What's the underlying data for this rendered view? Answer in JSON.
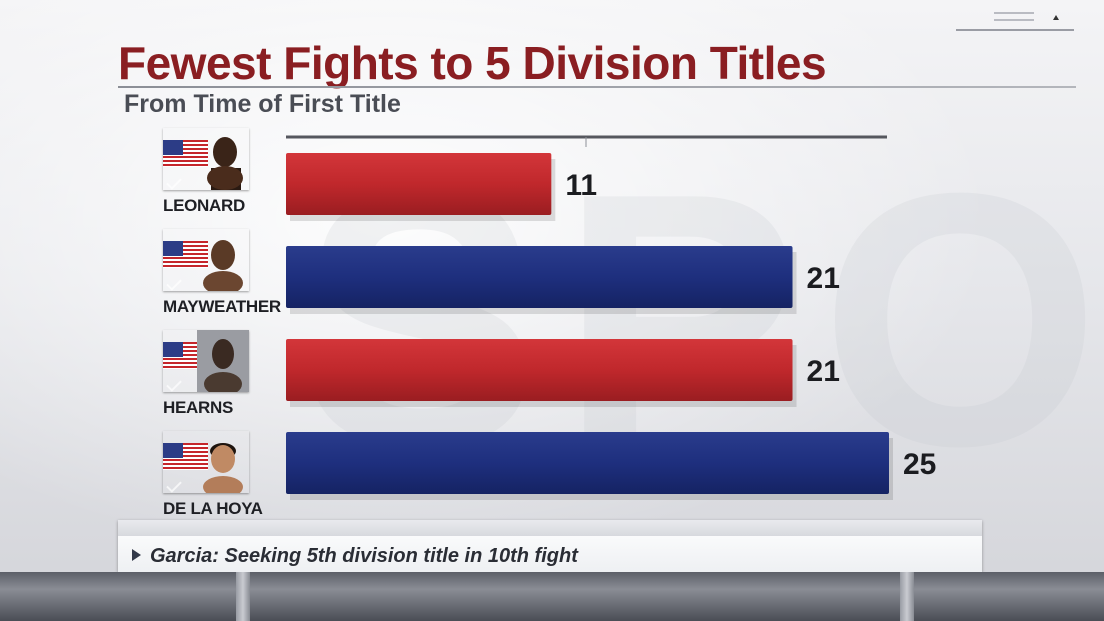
{
  "header": {
    "title": "Fewest Fights to 5 Division Titles",
    "subtitle": "From Time of First Title"
  },
  "chart_data": {
    "type": "bar",
    "orientation": "horizontal",
    "title": "Fewest Fights to 5 Division Titles",
    "subtitle": "From Time of First Title",
    "categories": [
      "LEONARD",
      "MAYWEATHER",
      "HEARNS",
      "DE LA HOYA"
    ],
    "values": [
      11,
      21,
      21,
      25
    ],
    "value_labels": [
      "11",
      "21",
      "21",
      "25"
    ],
    "bar_colors": [
      "#c0282c",
      "#1e2f7e",
      "#c0282c",
      "#1e2f7e"
    ],
    "xlim": [
      0,
      25
    ],
    "grid": false,
    "legend": "none"
  },
  "fighters": [
    {
      "name": "LEONARD",
      "card_color": "red"
    },
    {
      "name": "MAYWEATHER",
      "card_color": "blue"
    },
    {
      "name": "HEARNS",
      "card_color": "red"
    },
    {
      "name": "DE LA HOYA",
      "card_color": "blue"
    }
  ],
  "ticker": {
    "text": "Garcia: Seeking 5th division title in 10th fight",
    "icon": "play-arrow-icon"
  },
  "colors": {
    "title": "#8a1e22",
    "red_bar": "#c0282c",
    "blue_bar": "#1e2f7e"
  },
  "watermark": "SPORT"
}
